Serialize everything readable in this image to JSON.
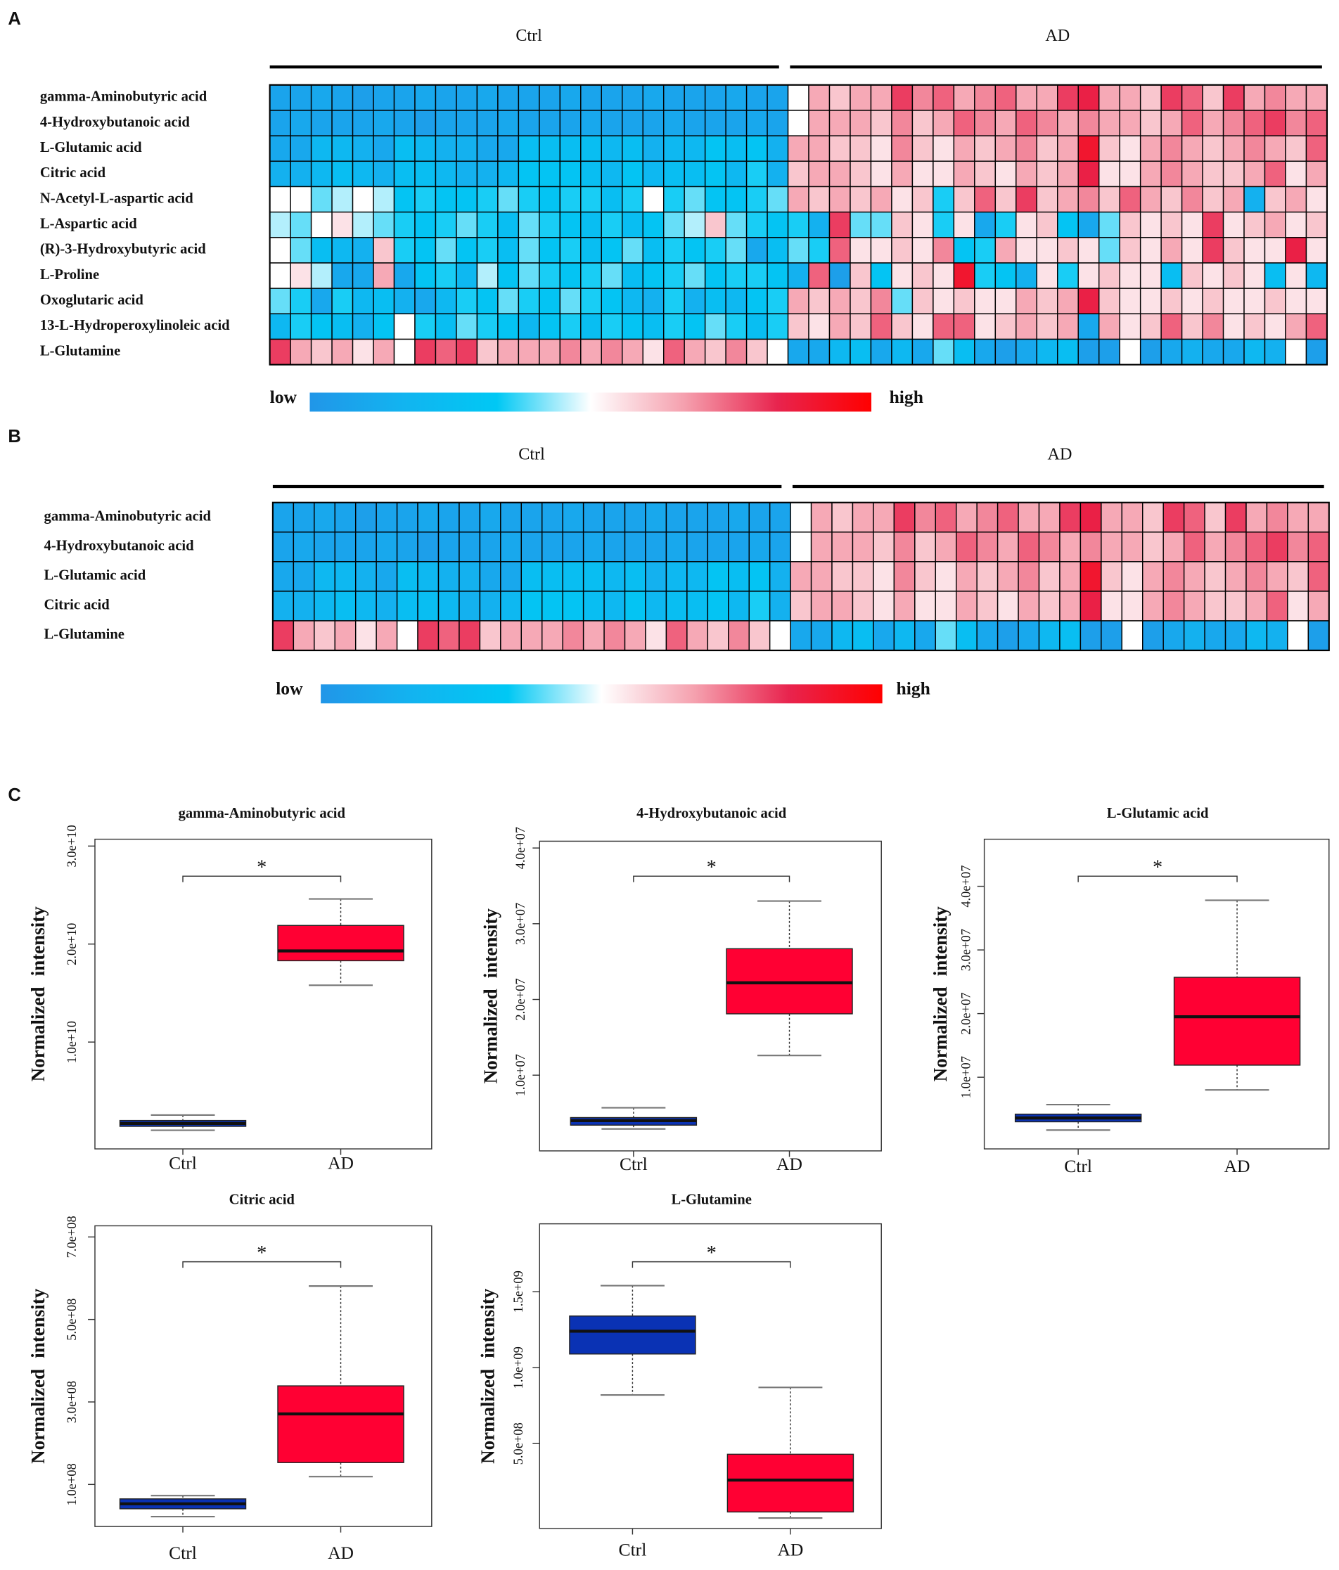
{
  "chart_data": [
    {
      "type": "heatmap",
      "panel": "A",
      "rows": [
        "gamma-Aminobutyric acid",
        "4-Hydroxybutanoic acid",
        "L-Glutamic acid",
        "Citric acid",
        "N-Acetyl-L-aspartic acid",
        "L-Aspartic acid",
        "(R)-3-Hydroxybutyric acid",
        "L-Proline",
        "Oxoglutaric acid",
        "13-L-Hydroperoxylinoleic acid",
        "L-Glutamine"
      ],
      "groups": [
        {
          "name": "Ctrl",
          "size": 25
        },
        {
          "name": "AD",
          "size": 26
        }
      ],
      "zlim": [
        -1,
        1
      ],
      "colors": [
        "#2196e8",
        "#12b4f0",
        "#00c8f4",
        "#ffffff",
        "#f5a0ae",
        "#e8244e",
        "#ff0000"
      ],
      "legend_low": "low",
      "legend_high": "high",
      "values": [
        [
          -0.85,
          -0.85,
          -0.8,
          -0.85,
          -0.9,
          -0.85,
          -0.85,
          -0.8,
          -0.85,
          -0.85,
          -0.8,
          -0.85,
          -0.85,
          -0.85,
          -0.8,
          -0.85,
          -0.85,
          -0.85,
          -0.8,
          -0.85,
          -0.85,
          -0.85,
          -0.8,
          -0.85,
          -0.85,
          0,
          0.3,
          0.2,
          0.3,
          0.3,
          0.6,
          0.4,
          0.5,
          0.3,
          0.4,
          0.5,
          0.3,
          0.3,
          0.6,
          0.7,
          0.3,
          0.3,
          0.2,
          0.6,
          0.5,
          0.2,
          0.6,
          0.3,
          0.4,
          0.3,
          0.3
        ],
        [
          -0.85,
          -0.8,
          -0.85,
          -0.85,
          -0.85,
          -0.8,
          -0.85,
          -0.9,
          -0.85,
          -0.85,
          -0.85,
          -0.8,
          -0.85,
          -0.85,
          -0.85,
          -0.8,
          -0.85,
          -0.85,
          -0.85,
          -0.8,
          -0.85,
          -0.85,
          -0.85,
          -0.8,
          -0.85,
          0,
          0.3,
          0.3,
          0.3,
          0.2,
          0.4,
          0.2,
          0.3,
          0.5,
          0.4,
          0.3,
          0.5,
          0.4,
          0.3,
          0.4,
          0.3,
          0.3,
          0.2,
          0.3,
          0.5,
          0.3,
          0.4,
          0.5,
          0.6,
          0.4,
          0.5
        ],
        [
          -0.8,
          -0.8,
          -0.6,
          -0.6,
          -0.7,
          -0.8,
          -0.5,
          -0.6,
          -0.7,
          -0.7,
          -0.8,
          -0.8,
          -0.5,
          -0.5,
          -0.5,
          -0.5,
          -0.6,
          -0.5,
          -0.7,
          -0.6,
          -0.6,
          -0.4,
          -0.5,
          -0.4,
          -0.7,
          0.3,
          0.3,
          0.2,
          0.2,
          0.1,
          0.4,
          0.2,
          0.1,
          0.3,
          0.2,
          0.3,
          0.4,
          0.2,
          0.3,
          0.8,
          0.2,
          0.1,
          0.3,
          0.4,
          0.3,
          0.2,
          0.3,
          0.4,
          0.3,
          0.2,
          0.5
        ],
        [
          -0.7,
          -0.7,
          -0.6,
          -0.5,
          -0.6,
          -0.7,
          -0.5,
          -0.5,
          -0.6,
          -0.7,
          -0.7,
          -0.6,
          -0.4,
          -0.4,
          -0.4,
          -0.5,
          -0.6,
          -0.4,
          -0.6,
          -0.5,
          -0.5,
          -0.4,
          -0.6,
          -0.3,
          -0.7,
          0.2,
          0.3,
          0.3,
          0.2,
          0.1,
          0.3,
          0.1,
          0.1,
          0.3,
          0.2,
          0.1,
          0.3,
          0.2,
          0.3,
          0.7,
          0.1,
          0.1,
          0.3,
          0.4,
          0.3,
          0.2,
          0.2,
          0.3,
          0.5,
          0.1,
          0.3
        ],
        [
          0,
          0,
          -0.2,
          -0.1,
          0,
          -0.1,
          -0.4,
          -0.3,
          -0.4,
          -0.4,
          -0.3,
          -0.2,
          -0.3,
          -0.4,
          -0.3,
          -0.3,
          -0.5,
          -0.3,
          0,
          -0.3,
          -0.2,
          -0.4,
          -0.4,
          -0.3,
          -0.2,
          0.3,
          0.2,
          0.3,
          0.2,
          0.3,
          0.1,
          0.2,
          -0.3,
          0.2,
          0.5,
          0.2,
          0.6,
          0.2,
          0.3,
          0.4,
          0.2,
          0.5,
          0.3,
          0.2,
          0.4,
          0.2,
          0.3,
          -0.7,
          0.2,
          0.3,
          0.1
        ],
        [
          -0.1,
          -0.2,
          0,
          0.1,
          -0.1,
          -0.2,
          -0.3,
          -0.4,
          -0.3,
          -0.2,
          -0.3,
          -0.5,
          -0.2,
          -0.3,
          -0.4,
          -0.5,
          -0.3,
          -0.5,
          -0.4,
          -0.2,
          -0.1,
          0.2,
          -0.2,
          -0.3,
          -0.4,
          -0.3,
          -0.7,
          0.6,
          -0.2,
          -0.2,
          0.2,
          0.1,
          -0.3,
          0.1,
          -0.8,
          -0.3,
          0.1,
          0.2,
          -0.4,
          -0.8,
          -0.2,
          0.2,
          0.1,
          0.2,
          0.1,
          0.6,
          0.1,
          0.2,
          0.3,
          0.1,
          0.2
        ],
        [
          0,
          -0.2,
          -0.5,
          -0.6,
          -0.7,
          0.2,
          -0.3,
          -0.4,
          -0.2,
          -0.4,
          -0.3,
          -0.5,
          -0.2,
          -0.4,
          -0.3,
          -0.5,
          -0.4,
          -0.2,
          -0.5,
          -0.3,
          -0.4,
          -0.3,
          -0.2,
          -0.8,
          -0.5,
          -0.2,
          -0.3,
          0.5,
          0.1,
          0.1,
          0.2,
          0.1,
          0.4,
          -0.4,
          -0.3,
          0.3,
          0.1,
          0.1,
          0.2,
          0.1,
          -0.2,
          0.2,
          0.1,
          0.3,
          0.1,
          0.6,
          0.2,
          0.1,
          0.1,
          0.7,
          0.1
        ],
        [
          0,
          0.1,
          -0.1,
          -0.8,
          -0.8,
          0.3,
          -0.8,
          -0.4,
          -0.3,
          -0.6,
          -0.1,
          -0.4,
          -0.2,
          -0.3,
          -0.4,
          -0.3,
          -0.2,
          -0.5,
          -0.4,
          -0.3,
          -0.2,
          -0.4,
          -0.3,
          -0.3,
          -0.4,
          -0.7,
          0.5,
          -0.9,
          0.2,
          -0.4,
          0.1,
          0.2,
          0.1,
          0.8,
          -0.3,
          -0.4,
          -0.7,
          0.1,
          -0.3,
          0.1,
          0.2,
          0.1,
          0.1,
          -0.5,
          0.2,
          0.1,
          0.2,
          0.1,
          -0.5,
          0.1,
          -0.6
        ],
        [
          -0.2,
          -0.3,
          -0.8,
          -0.3,
          -0.6,
          -0.5,
          -0.7,
          -0.8,
          -0.6,
          -0.3,
          -0.4,
          -0.2,
          -0.3,
          -0.4,
          -0.2,
          -0.3,
          -0.4,
          -0.6,
          -0.7,
          -0.3,
          -0.7,
          -0.5,
          -0.6,
          -0.4,
          -0.3,
          0.3,
          0.2,
          0.3,
          0.2,
          0.4,
          -0.2,
          0.2,
          0.1,
          0.2,
          0.1,
          0.1,
          0.3,
          0.2,
          0.3,
          0.7,
          0.2,
          0.1,
          0.1,
          0.2,
          0.1,
          0.2,
          0.1,
          0.1,
          0.2,
          0.1,
          0.1
        ],
        [
          -0.6,
          -0.3,
          -0.4,
          -0.5,
          -0.7,
          -0.4,
          0,
          -0.3,
          -0.5,
          -0.2,
          -0.3,
          -0.4,
          -0.6,
          -0.4,
          -0.3,
          -0.5,
          -0.3,
          -0.4,
          -0.5,
          -0.3,
          -0.4,
          -0.2,
          -0.3,
          -0.5,
          -0.3,
          0.2,
          0.1,
          0.3,
          0.2,
          0.5,
          0.2,
          0.1,
          0.5,
          0.5,
          0.1,
          0.2,
          0.3,
          0.2,
          0.3,
          -0.8,
          0.3,
          0.1,
          0.2,
          0.5,
          0.2,
          0.4,
          0.1,
          0.2,
          0.1,
          0.3,
          0.5
        ],
        [
          0.6,
          0.3,
          0.2,
          0.3,
          0.1,
          0.3,
          0,
          0.6,
          0.5,
          0.6,
          0.2,
          0.3,
          0.3,
          0.3,
          0.4,
          0.3,
          0.4,
          0.3,
          0.1,
          0.5,
          0.3,
          0.2,
          0.4,
          0.2,
          0,
          -0.8,
          -0.8,
          -0.6,
          -0.5,
          -0.8,
          -0.6,
          -0.8,
          -0.2,
          -0.5,
          -0.8,
          -0.9,
          -0.8,
          -0.6,
          -0.5,
          -0.9,
          -0.9,
          0,
          -0.9,
          -0.8,
          -0.7,
          -0.8,
          -0.8,
          -0.6,
          -0.7,
          0,
          -0.9
        ]
      ]
    },
    {
      "type": "heatmap",
      "panel": "B",
      "rows": [
        "gamma-Aminobutyric acid",
        "4-Hydroxybutanoic acid",
        "L-Glutamic acid",
        "Citric acid",
        "L-Glutamine"
      ],
      "groups": [
        {
          "name": "Ctrl",
          "size": 25
        },
        {
          "name": "AD",
          "size": 26
        }
      ],
      "zlim": [
        -1,
        1
      ],
      "colors": [
        "#2196e8",
        "#12b4f0",
        "#00c8f4",
        "#ffffff",
        "#f5a0ae",
        "#e8244e",
        "#ff0000"
      ],
      "legend_low": "low",
      "legend_high": "high",
      "values": [
        [
          -0.85,
          -0.85,
          -0.8,
          -0.85,
          -0.9,
          -0.85,
          -0.85,
          -0.8,
          -0.85,
          -0.85,
          -0.8,
          -0.85,
          -0.85,
          -0.85,
          -0.8,
          -0.85,
          -0.85,
          -0.85,
          -0.8,
          -0.85,
          -0.85,
          -0.85,
          -0.8,
          -0.85,
          -0.85,
          0,
          0.3,
          0.2,
          0.3,
          0.3,
          0.6,
          0.4,
          0.5,
          0.3,
          0.4,
          0.5,
          0.3,
          0.3,
          0.6,
          0.7,
          0.3,
          0.3,
          0.2,
          0.6,
          0.5,
          0.2,
          0.6,
          0.3,
          0.4,
          0.3,
          0.3
        ],
        [
          -0.85,
          -0.8,
          -0.85,
          -0.85,
          -0.85,
          -0.8,
          -0.85,
          -0.9,
          -0.85,
          -0.85,
          -0.85,
          -0.8,
          -0.85,
          -0.85,
          -0.85,
          -0.8,
          -0.85,
          -0.85,
          -0.85,
          -0.8,
          -0.85,
          -0.85,
          -0.85,
          -0.8,
          -0.85,
          0,
          0.3,
          0.3,
          0.3,
          0.2,
          0.4,
          0.2,
          0.3,
          0.5,
          0.4,
          0.3,
          0.5,
          0.4,
          0.3,
          0.4,
          0.3,
          0.3,
          0.2,
          0.3,
          0.5,
          0.3,
          0.4,
          0.5,
          0.6,
          0.4,
          0.5
        ],
        [
          -0.8,
          -0.8,
          -0.6,
          -0.6,
          -0.7,
          -0.8,
          -0.5,
          -0.6,
          -0.7,
          -0.7,
          -0.8,
          -0.8,
          -0.5,
          -0.5,
          -0.5,
          -0.5,
          -0.6,
          -0.5,
          -0.7,
          -0.6,
          -0.6,
          -0.4,
          -0.5,
          -0.4,
          -0.7,
          0.3,
          0.3,
          0.2,
          0.2,
          0.1,
          0.4,
          0.2,
          0.1,
          0.3,
          0.2,
          0.3,
          0.4,
          0.2,
          0.3,
          0.8,
          0.2,
          0.1,
          0.3,
          0.4,
          0.3,
          0.2,
          0.3,
          0.4,
          0.3,
          0.2,
          0.5
        ],
        [
          -0.7,
          -0.7,
          -0.6,
          -0.5,
          -0.6,
          -0.7,
          -0.5,
          -0.5,
          -0.6,
          -0.7,
          -0.7,
          -0.6,
          -0.4,
          -0.4,
          -0.4,
          -0.5,
          -0.6,
          -0.4,
          -0.6,
          -0.5,
          -0.5,
          -0.4,
          -0.6,
          -0.3,
          -0.7,
          0.2,
          0.3,
          0.3,
          0.2,
          0.1,
          0.3,
          0.1,
          0.1,
          0.3,
          0.2,
          0.1,
          0.3,
          0.2,
          0.3,
          0.7,
          0.1,
          0.1,
          0.3,
          0.4,
          0.3,
          0.2,
          0.2,
          0.3,
          0.5,
          0.1,
          0.3
        ],
        [
          0.6,
          0.3,
          0.2,
          0.3,
          0.1,
          0.3,
          0,
          0.6,
          0.5,
          0.6,
          0.2,
          0.3,
          0.3,
          0.3,
          0.4,
          0.3,
          0.4,
          0.3,
          0.1,
          0.5,
          0.3,
          0.2,
          0.4,
          0.2,
          0,
          -0.8,
          -0.8,
          -0.6,
          -0.5,
          -0.8,
          -0.6,
          -0.8,
          -0.2,
          -0.5,
          -0.8,
          -0.9,
          -0.8,
          -0.6,
          -0.5,
          -0.9,
          -0.9,
          0,
          -0.9,
          -0.8,
          -0.7,
          -0.8,
          -0.8,
          -0.6,
          -0.7,
          0,
          -0.9
        ]
      ]
    },
    {
      "type": "box",
      "panel": "C",
      "title": "gamma-Aminobutyric acid",
      "y_label": "Normalized intensity",
      "annotation": "*",
      "categories": [
        "Ctrl",
        "AD"
      ],
      "colors": [
        "#0a32b4",
        "#ff0033"
      ],
      "min": [
        1000000000.0,
        15800000000.0
      ],
      "q1": [
        1400000000.0,
        18300000000.0
      ],
      "median": [
        1700000000.0,
        19300000000.0
      ],
      "q3": [
        2000000000.0,
        21900000000.0
      ],
      "max": [
        2550000000.0,
        24600000000.0
      ],
      "ylim": [
        -900000000.0,
        30700000000.0
      ],
      "yticks": [
        {
          "value": 10000000000.0,
          "label": "1.0e+10"
        },
        {
          "value": 20000000000.0,
          "label": "2.0e+10"
        },
        {
          "value": 30000000000.0,
          "label": "3.0e+10"
        }
      ]
    },
    {
      "type": "box",
      "title": "4-Hydroxybutanoic acid",
      "y_label": "Normalized intensity",
      "annotation": "*",
      "categories": [
        "Ctrl",
        "AD"
      ],
      "colors": [
        "#0a32b4",
        "#ff0033"
      ],
      "min": [
        2900000.0,
        12600000.0
      ],
      "q1": [
        3400000.0,
        18100000.0
      ],
      "median": [
        4000000.0,
        22200000.0
      ],
      "q3": [
        4400000.0,
        26700000.0
      ],
      "max": [
        5700000.0,
        33000000.0
      ],
      "ylim": [
        0,
        40900000.0
      ],
      "yticks": [
        {
          "value": 10000000.0,
          "label": "1.0e+07"
        },
        {
          "value": 20000000.0,
          "label": "2.0e+07"
        },
        {
          "value": 30000000.0,
          "label": "3.0e+07"
        },
        {
          "value": 40000000.0,
          "label": "4.0e+07"
        }
      ]
    },
    {
      "type": "box",
      "title": "L-Glutamic acid",
      "y_label": "Normalized intensity",
      "annotation": "*",
      "categories": [
        "Ctrl",
        "AD"
      ],
      "colors": [
        "#0a32b4",
        "#ff0033"
      ],
      "min": [
        1700000.0,
        8000000.0
      ],
      "q1": [
        3000000.0,
        11900000.0
      ],
      "median": [
        3600000.0,
        19500000.0
      ],
      "q3": [
        4200000.0,
        25700000.0
      ],
      "max": [
        5700000.0,
        37800000.0
      ],
      "ylim": [
        -1260000.0,
        47400000.0
      ],
      "yticks": [
        {
          "value": 10000000.0,
          "label": "1.0e+07"
        },
        {
          "value": 20000000.0,
          "label": "2.0e+07"
        },
        {
          "value": 30000000.0,
          "label": "3.0e+07"
        },
        {
          "value": 40000000.0,
          "label": "4.0e+07"
        }
      ]
    },
    {
      "type": "box",
      "title": "Citric acid",
      "y_label": "Normalized intensity",
      "annotation": "*",
      "categories": [
        "Ctrl",
        "AD"
      ],
      "colors": [
        "#0a32b4",
        "#ff0033"
      ],
      "min": [
        22000000.0,
        119000000.0
      ],
      "q1": [
        41000000.0,
        153000000.0
      ],
      "median": [
        53000000.0,
        271000000.0
      ],
      "q3": [
        65000000.0,
        339000000.0
      ],
      "max": [
        73000000.0,
        581000000.0
      ],
      "ylim": [
        -2000000.0,
        727000000.0
      ],
      "yticks": [
        {
          "value": 100000000.0,
          "label": "1.0e+08"
        },
        {
          "value": 300000000.0,
          "label": "3.0e+08"
        },
        {
          "value": 500000000.0,
          "label": "5.0e+08"
        },
        {
          "value": 700000000.0,
          "label": "7.0e+08"
        }
      ]
    },
    {
      "type": "box",
      "title": "L-Glutamine",
      "y_label": "Normalized intensity",
      "annotation": "*",
      "categories": [
        "Ctrl",
        "AD"
      ],
      "colors": [
        "#0a32b4",
        "#ff0033"
      ],
      "min": [
        820000000.0,
        10000000.0
      ],
      "q1": [
        1090000000.0,
        50000000.0
      ],
      "median": [
        1240000000.0,
        260000000.0
      ],
      "q3": [
        1340000000.0,
        430000000.0
      ],
      "max": [
        1540000000.0,
        870000000.0
      ],
      "ylim": [
        -59000000.0,
        1947000000.0
      ],
      "yticks": [
        {
          "value": 500000000.0,
          "label": "5.0e+08"
        },
        {
          "value": 1000000000.0,
          "label": "1.0e+09"
        },
        {
          "value": 1500000000.0,
          "label": "1.5e+09"
        }
      ]
    }
  ]
}
